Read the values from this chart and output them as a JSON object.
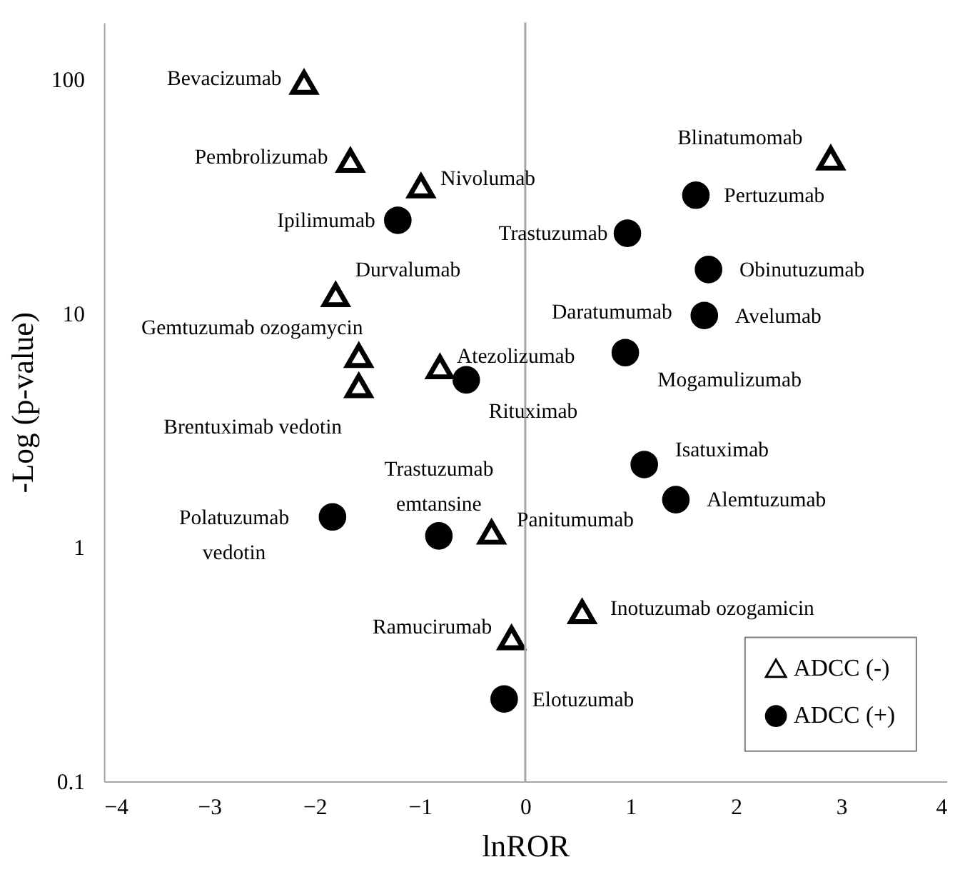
{
  "chart_data": {
    "type": "scatter",
    "xlabel": "lnROR",
    "ylabel": "-Log (p-value)",
    "xlim": [
      -4,
      4
    ],
    "xticks": [
      -4,
      -3,
      -2,
      -1,
      0,
      1,
      2,
      3,
      4
    ],
    "ylim": [
      0.1,
      175
    ],
    "yticks": [
      0.1,
      1,
      10,
      100
    ],
    "log": "y",
    "grid": false,
    "legend": "bottom right",
    "ref_lines": [
      {
        "axis": "x",
        "value": 0,
        "color": "#a6a6a6"
      }
    ],
    "series": [
      {
        "name": "ADCC (-)",
        "color": "#000000",
        "marker": "triangle",
        "x": [
          -2.1,
          -1.66,
          -0.99,
          -1.8,
          -1.58,
          -1.58,
          -0.81,
          2.9,
          -0.32,
          0.54,
          -0.13
        ],
        "values": [
          97,
          45,
          35,
          12,
          6.6,
          4.9,
          5.9,
          46,
          1.16,
          0.53,
          0.41
        ]
      },
      {
        "name": "ADCC (+)",
        "color": "#000000",
        "marker": "circle",
        "x": [
          -1.21,
          -0.56,
          1.62,
          0.97,
          1.74,
          1.7,
          0.95,
          1.13,
          1.43,
          -0.2,
          -1.83,
          -0.82
        ],
        "values": [
          25,
          5.2,
          32,
          22,
          15.4,
          9.8,
          6.8,
          2.26,
          1.6,
          0.225,
          1.35,
          1.12
        ]
      }
    ],
    "annotations": [
      {
        "text": "Bevacizumab",
        "x": -2.1,
        "y": 97
      },
      {
        "text": "Pembrolizumab",
        "x": -1.66,
        "y": 45
      },
      {
        "text": "Nivolumab",
        "x": -0.99,
        "y": 35
      },
      {
        "text": "Ipilimumab",
        "x": -1.21,
        "y": 25
      },
      {
        "text": "Durvalumab",
        "x": -1.8,
        "y": 12
      },
      {
        "text": "Gemtuzumab ozogamycin",
        "x": -1.58,
        "y": 6.6
      },
      {
        "text": "Brentuximab vedotin",
        "x": -1.58,
        "y": 4.9
      },
      {
        "text": "Atezolizumab",
        "x": -0.81,
        "y": 5.9
      },
      {
        "text": "Rituximab",
        "x": -0.56,
        "y": 5.2
      },
      {
        "text": "Blinatumomab",
        "x": 2.9,
        "y": 46
      },
      {
        "text": "Pertuzumab",
        "x": 1.62,
        "y": 32
      },
      {
        "text": "Trastuzumab",
        "x": 0.97,
        "y": 22
      },
      {
        "text": "Obinutuzumab",
        "x": 1.74,
        "y": 15.4
      },
      {
        "text": "Avelumab",
        "x": 1.7,
        "y": 9.8
      },
      {
        "text": "Daratumumab",
        "x": 0.93,
        "y": 7.0
      },
      {
        "text": "Mogamulizumab",
        "x": 0.95,
        "y": 6.8
      },
      {
        "text": "Isatuximab",
        "x": 1.13,
        "y": 2.26
      },
      {
        "text": "Alemtuzumab",
        "x": 1.43,
        "y": 1.6
      },
      {
        "text": "Panitumumab",
        "x": -0.32,
        "y": 1.16
      },
      {
        "text": "Inotuzumab ozogamicin",
        "x": 0.54,
        "y": 0.53
      },
      {
        "text": "Ramucirumab",
        "x": -0.13,
        "y": 0.41
      },
      {
        "text": "Elotuzumab",
        "x": -0.2,
        "y": 0.225
      },
      {
        "text": "Polatuzumab vedotin",
        "x": -1.83,
        "y": 1.35
      },
      {
        "text": "Trastuzumab emtansine",
        "x": -0.82,
        "y": 1.12
      }
    ]
  }
}
